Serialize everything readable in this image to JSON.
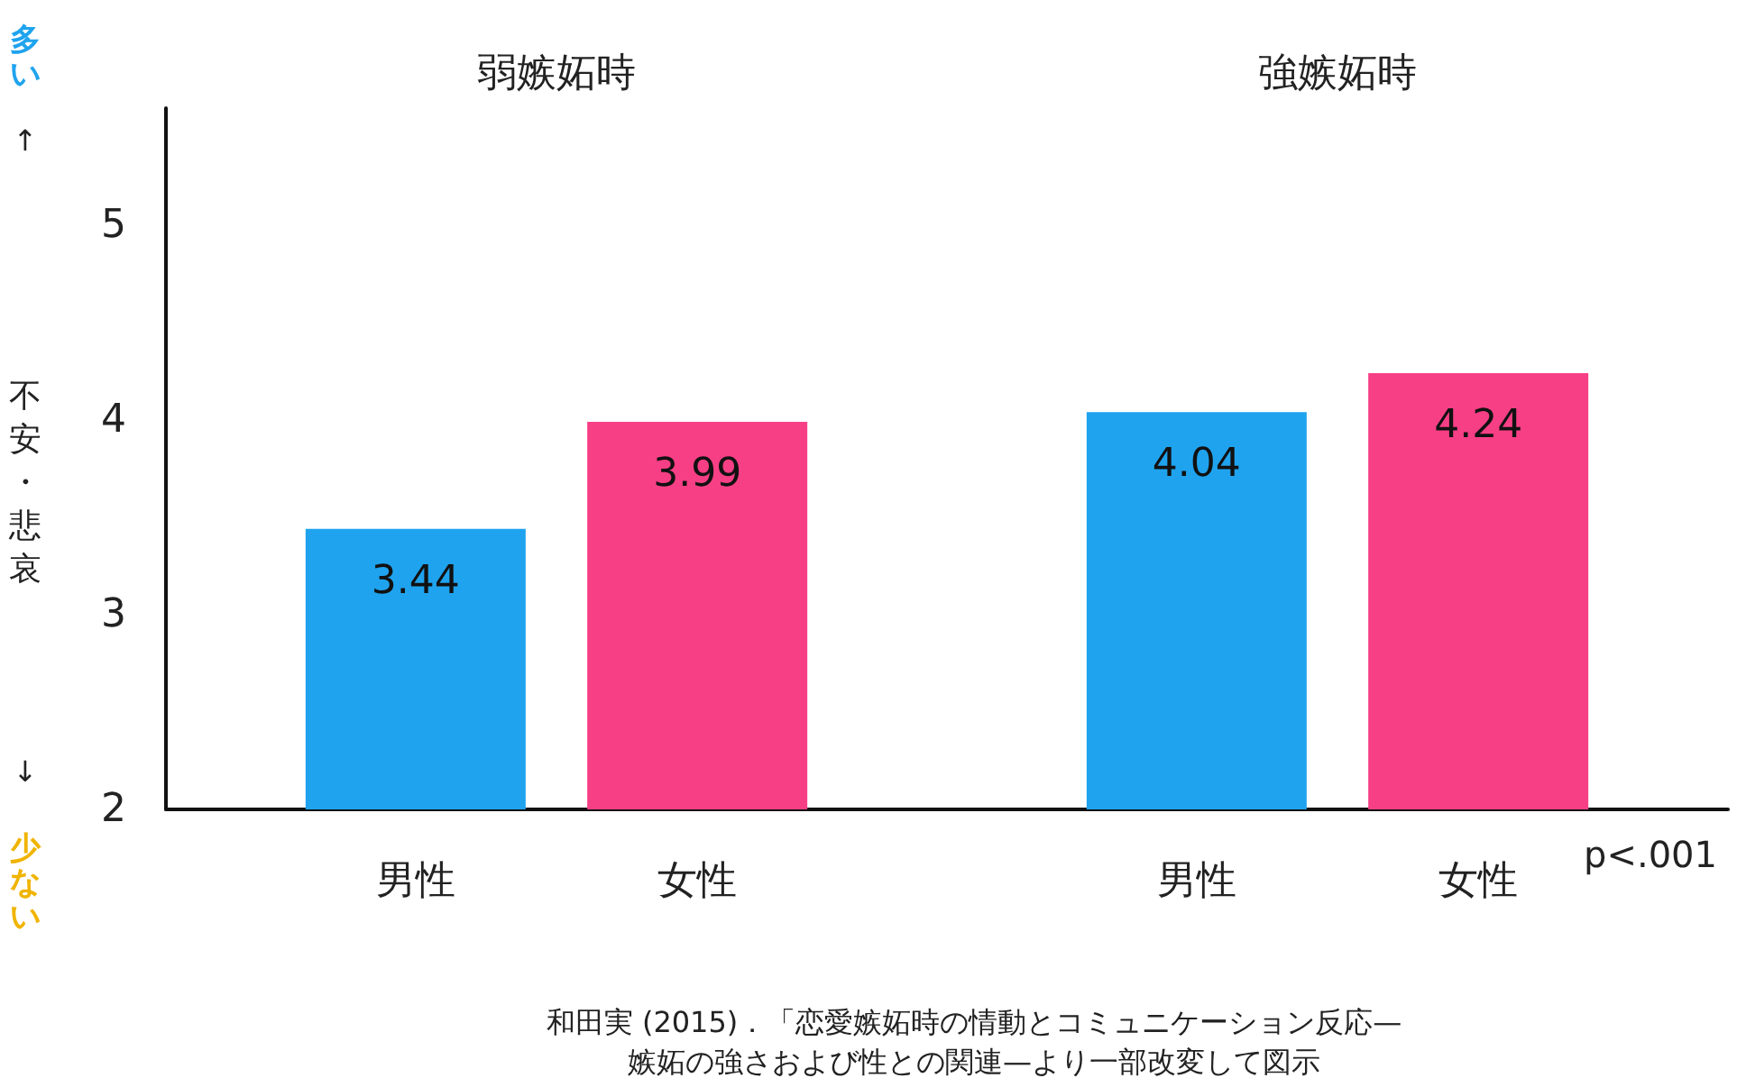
{
  "chart_data": {
    "type": "bar",
    "categories": [
      "弱嫉妬時",
      "強嫉妬時"
    ],
    "series": [
      {
        "name": "男性",
        "color": "#1fa3ee",
        "values": [
          3.44,
          4.04
        ]
      },
      {
        "name": "女性",
        "color": "#f73f86",
        "values": [
          3.99,
          4.24
        ]
      }
    ],
    "ylabel": "不安・悲哀",
    "ylim": [
      2,
      5.6
    ],
    "yticks": [
      2,
      3,
      4,
      5
    ],
    "grid": false,
    "legend": false,
    "data_labels": true,
    "annotations": [
      "多い",
      "↑",
      "↓",
      "少ない",
      "p<.001",
      "和田実 (2015)．「恋愛嫉妬時の情動とコミュニケーション反応—\n嫉妬の強さおよび性との関連—より一部改変して図示"
    ]
  }
}
